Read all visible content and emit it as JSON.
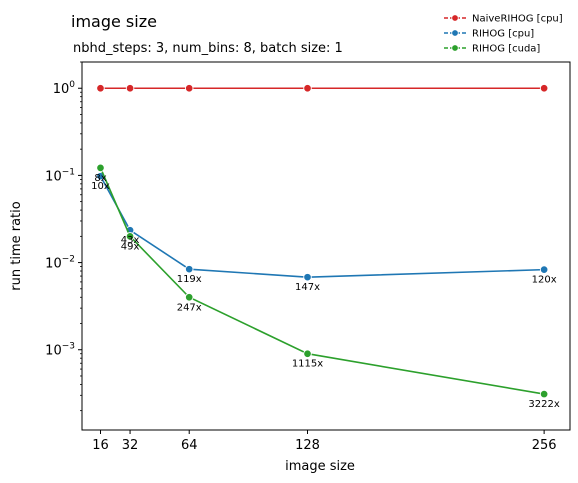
{
  "chart_data": {
    "type": "line",
    "title": "image size",
    "subtitle": "nbhd_steps: 3, num_bins: 8, batch size: 1",
    "xlabel": "image size",
    "ylabel": "run time ratio",
    "x": [
      16,
      32,
      64,
      128,
      256
    ],
    "xlim": [
      6,
      270
    ],
    "yscale": "log",
    "ylim": [
      0.00012,
      2.0
    ],
    "xticks": [
      "16",
      "32",
      "64",
      "128",
      "256"
    ],
    "yticks": [
      {
        "value": 1,
        "label": "10",
        "exp": "0"
      },
      {
        "value": 0.1,
        "label": "10",
        "exp": "−1"
      },
      {
        "value": 0.01,
        "label": "10",
        "exp": "−2"
      },
      {
        "value": 0.001,
        "label": "10",
        "exp": "−3"
      }
    ],
    "legend_position": "top-right",
    "grid": false,
    "series": [
      {
        "name": "NaiveRIHOG [cpu]",
        "color": "#d62728",
        "values": [
          1.0,
          1.0,
          1.0,
          1.0,
          1.0
        ],
        "annotations": [
          "",
          "",
          "",
          "",
          ""
        ]
      },
      {
        "name": "RIHOG [cpu]",
        "color": "#1f77b4",
        "values": [
          0.098,
          0.0235,
          0.0084,
          0.0068,
          0.0083
        ],
        "annotations": [
          "10x",
          "43x",
          "119x",
          "147x",
          "120x"
        ]
      },
      {
        "name": "RIHOG [cuda]",
        "color": "#2ca02c",
        "values": [
          0.122,
          0.02,
          0.004,
          0.0009,
          0.00031
        ],
        "annotations": [
          "8x",
          "49x",
          "247x",
          "1115x",
          "3222x"
        ]
      }
    ]
  }
}
